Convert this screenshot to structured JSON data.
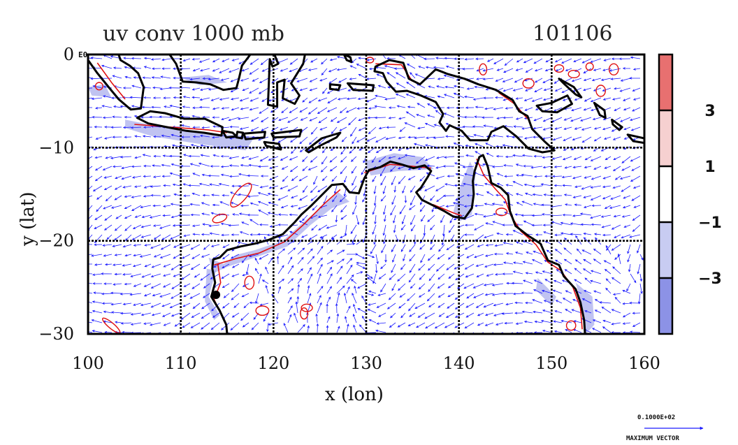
{
  "chart_data": {
    "type": "heatmap",
    "title": "uv conv 1000 mb",
    "date_label": "101106",
    "xlabel": "x (lon)",
    "ylabel": "y (lat)",
    "xlim": [
      100,
      160
    ],
    "ylim": [
      -30,
      0
    ],
    "x_ticks": [
      100,
      110,
      120,
      130,
      140,
      150,
      160
    ],
    "x_tick_labels": [
      "100",
      "110",
      "120",
      "130",
      "140",
      "150",
      "160"
    ],
    "y_ticks": [
      0,
      -10,
      -20,
      -30
    ],
    "y_tick_labels": [
      "0",
      "−10",
      "−20",
      "−30"
    ],
    "y_top_suffix": "E0",
    "grid": true,
    "colorbar": {
      "labels": [
        "3",
        "1",
        "−1",
        "−3"
      ],
      "levels": [
        3,
        1,
        -1,
        -3
      ],
      "colors": [
        "#e87070",
        "#f6d0d0",
        "#ffffff",
        "#c8ccf2",
        "#8c92e6"
      ]
    },
    "vector_legend": {
      "value": "0.1000E+02",
      "label": "MAXIMUM VECTOR",
      "color": "#1a1aff"
    },
    "coastline_color": "#000000",
    "positive_contour_color": "#e01010",
    "negative_fill_color": "#8c92e6"
  }
}
